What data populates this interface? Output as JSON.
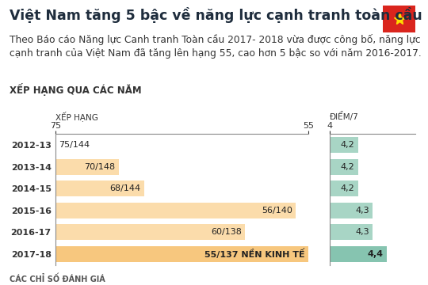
{
  "title": "Việt Nam tăng 5 bậc về năng lực cạnh tranh toàn cầu",
  "subtitle": "Theo Báo cáo Năng lực Canh tranh Toàn cầu 2017- 2018 vừa được công bố, năng lực cạnh tranh của Việt Nam đã tăng lên hạng 55, cao hơn 5 bậc so với năm 2016-2017.",
  "section": "XẾP HẠNG QUA CÁC NĂM",
  "footer": "CÁC CHỈ SỐ ĐÁNH GIÁ",
  "chart_data": [
    {
      "type": "bar",
      "orientation": "horizontal",
      "xlabel": "XẾP HẠNG",
      "categories": [
        "2012-13",
        "2013-14",
        "2014-15",
        "2015-16",
        "2016-17",
        "2017-18"
      ],
      "values": [
        75,
        70,
        68,
        56,
        60,
        55
      ],
      "value_labels": [
        "75/144",
        "70/148",
        "68/144",
        "56/140",
        "60/138",
        "55/137 NỀN KINH TẾ"
      ],
      "colors": [
        "#fbdcab",
        "#fbdcab",
        "#fbdcab",
        "#fbdcab",
        "#fbdcab",
        "#f7c77e"
      ],
      "xlim": [
        75,
        55
      ],
      "xticks": [
        75,
        55
      ],
      "grid": false,
      "data_labels": true,
      "tick_labels": true
    },
    {
      "type": "bar",
      "orientation": "horizontal",
      "xlabel": "ĐIỂM/7",
      "categories": [
        "2012-13",
        "2013-14",
        "2014-15",
        "2015-16",
        "2016-17",
        "2017-18"
      ],
      "values": [
        4.2,
        4.2,
        4.2,
        4.3,
        4.3,
        4.4
      ],
      "value_labels": [
        "4,2",
        "4,2",
        "4,2",
        "4,3",
        "4,3",
        "4,4"
      ],
      "colors": [
        "#a8d5c5",
        "#a8d5c5",
        "#a8d5c5",
        "#a8d5c5",
        "#a8d5c5",
        "#86c4b0"
      ],
      "xlim": [
        4,
        4.6
      ],
      "xticks": [
        4
      ],
      "grid": false,
      "data_labels": true,
      "tick_labels": "x"
    }
  ]
}
